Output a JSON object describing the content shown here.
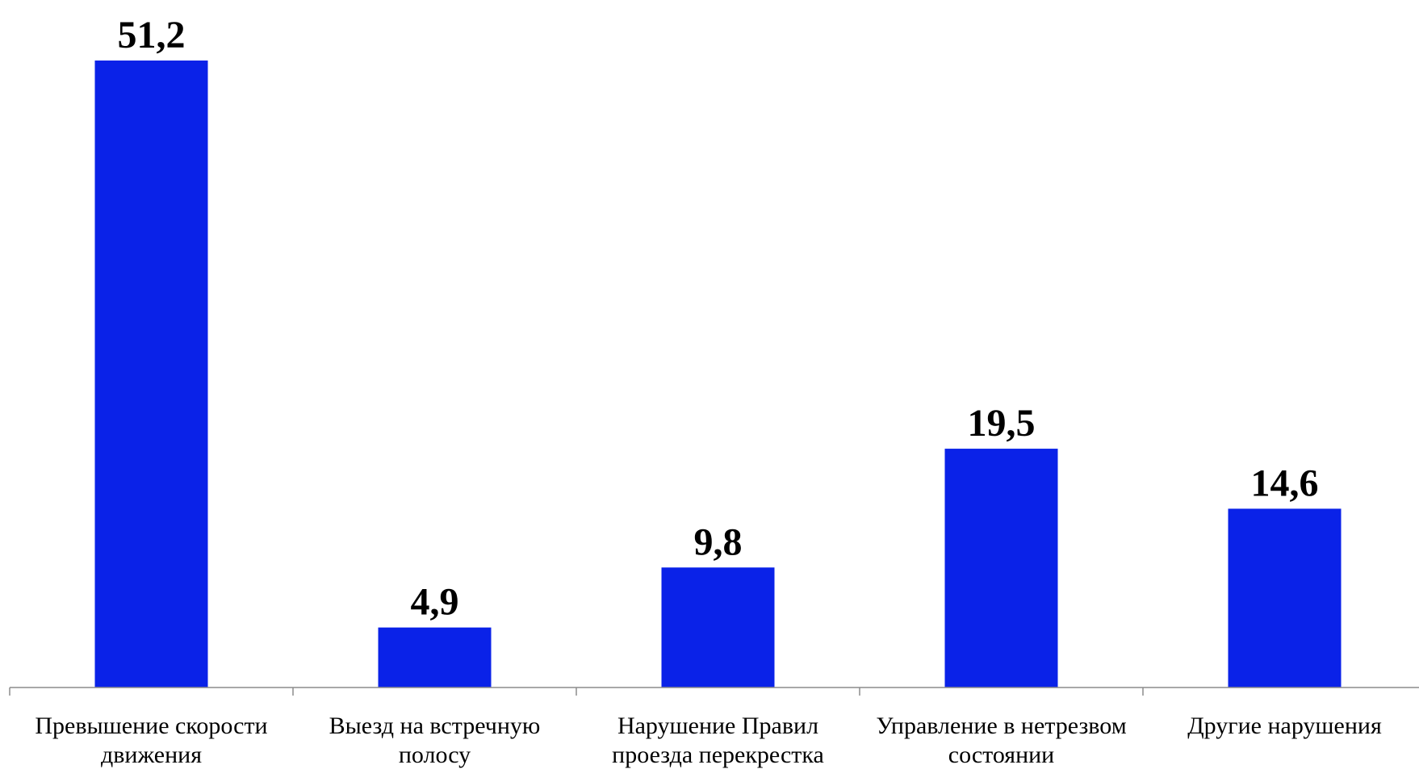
{
  "chart_data": {
    "type": "bar",
    "categories": [
      [
        "Превышение скорости",
        "движения"
      ],
      [
        "Выезд на встречную",
        "полосу"
      ],
      [
        "Нарушение Правил",
        "проезда перекрестка"
      ],
      [
        "Управление в нетрезвом",
        "состоянии"
      ],
      [
        "Другие нарушения"
      ]
    ],
    "values": [
      51.2,
      4.9,
      9.8,
      19.5,
      14.6
    ],
    "value_labels": [
      "51,2",
      "4,9",
      "9,8",
      "19,5",
      "14,6"
    ],
    "title": "",
    "xlabel": "",
    "ylabel": "",
    "ylim": [
      0,
      51.2
    ],
    "grid": false,
    "legend": "none",
    "bar_color": "#0a22e8"
  }
}
